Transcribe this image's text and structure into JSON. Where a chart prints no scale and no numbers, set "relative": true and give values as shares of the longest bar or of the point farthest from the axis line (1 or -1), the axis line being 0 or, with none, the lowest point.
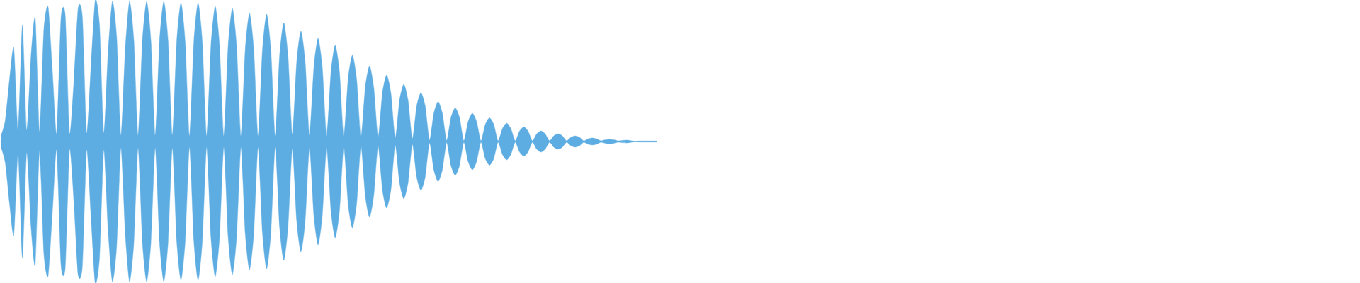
{
  "chart_data": {
    "type": "area",
    "relative": true,
    "categories": [
      null,
      null,
      null,
      null,
      null,
      null,
      null,
      null,
      null,
      null,
      null,
      null,
      null,
      null,
      null,
      null,
      null,
      null,
      null,
      null,
      null,
      null,
      null,
      null,
      null,
      null,
      null,
      null,
      null,
      null,
      null,
      null,
      null,
      null,
      null,
      null,
      null,
      null,
      null,
      null,
      null,
      null,
      null,
      null,
      null,
      null,
      null,
      null,
      null,
      null,
      null,
      null,
      null,
      null,
      null,
      null,
      null,
      null,
      null,
      null,
      null,
      null,
      null,
      null,
      null,
      null,
      null,
      null,
      null,
      null,
      null,
      null,
      null,
      null,
      null,
      null,
      null,
      null,
      null,
      null,
      null,
      null,
      null,
      null,
      null,
      null,
      null,
      null,
      null,
      null,
      null,
      null,
      null,
      null,
      null,
      null,
      null,
      null,
      null,
      null,
      null,
      null,
      null,
      null,
      null,
      null,
      null,
      null,
      null,
      null,
      null,
      null,
      null,
      null,
      null,
      null,
      null,
      null,
      null,
      null,
      null,
      null,
      null,
      null,
      null,
      null,
      null,
      null,
      null,
      null,
      null,
      null,
      null,
      null,
      null,
      null,
      null,
      null,
      null,
      null,
      null,
      null,
      null,
      null,
      null,
      null,
      null,
      null,
      null,
      null,
      null,
      null,
      null,
      null
    ],
    "series": [
      {
        "color": "#5dade2",
        "values": [
          0.04,
          0.15,
          0.44,
          0.66,
          0.08,
          0.82,
          0.08,
          0.6,
          0.87,
          0.07,
          0.79,
          0.95,
          0.5,
          0.06,
          0.87,
          0.89,
          0.06,
          0.42,
          0.94,
          0.88,
          0.06,
          0.53,
          1.0,
          0.82,
          0.06,
          0.63,
          0.99,
          0.74,
          0.045,
          0.65,
          0.99,
          0.72,
          0.045,
          0.71,
          0.99,
          0.71,
          0.045,
          0.71,
          0.99,
          0.71,
          0.045,
          0.7,
          0.98,
          0.7,
          0.04,
          0.7,
          0.98,
          0.7,
          0.04,
          0.68,
          0.955,
          0.68,
          0.04,
          0.67,
          0.94,
          0.67,
          0.04,
          0.65,
          0.905,
          0.65,
          0.04,
          0.64,
          0.9,
          0.64,
          0.04,
          0.6,
          0.84,
          0.6,
          0.05,
          0.56,
          0.78,
          0.56,
          0.045,
          0.52,
          0.73,
          0.52,
          0.04,
          0.49,
          0.68,
          0.49,
          0.035,
          0.44,
          0.61,
          0.44,
          0.03,
          0.38,
          0.535,
          0.38,
          0.03,
          0.34,
          0.47,
          0.34,
          0.025,
          0.29,
          0.405,
          0.29,
          0.02,
          0.25,
          0.345,
          0.25,
          0.01,
          0.2,
          0.283,
          0.2,
          0.008,
          0.17,
          0.238,
          0.17,
          0.006,
          0.14,
          0.2,
          0.14,
          0.005,
          0.12,
          0.167,
          0.12,
          0.005,
          0.09,
          0.13,
          0.09,
          0.005,
          0.074,
          0.103,
          0.074,
          0.005,
          0.054,
          0.075,
          0.054,
          0.005,
          0.04,
          0.055,
          0.04,
          0.005,
          0.03,
          0.04,
          0.03,
          0.005,
          0.019,
          0.025,
          0.019,
          0.005,
          0.012,
          0.015,
          0.012,
          0.005,
          0.008,
          0.01,
          0.006,
          0.002,
          0.004,
          0.004,
          0.004,
          0.004,
          0.004
        ]
      },
      {
        "color": "#5dade2",
        "values": [
          -0.04,
          -0.15,
          -0.44,
          -0.66,
          -0.08,
          -0.82,
          -0.08,
          -0.6,
          -0.87,
          -0.07,
          -0.79,
          -0.95,
          -0.5,
          -0.06,
          -0.87,
          -0.89,
          -0.06,
          -0.42,
          -0.94,
          -0.88,
          -0.06,
          -0.53,
          -1.0,
          -0.82,
          -0.06,
          -0.63,
          -0.99,
          -0.74,
          -0.045,
          -0.65,
          -0.99,
          -0.72,
          -0.045,
          -0.71,
          -0.99,
          -0.71,
          -0.045,
          -0.71,
          -0.99,
          -0.71,
          -0.045,
          -0.7,
          -0.98,
          -0.7,
          -0.04,
          -0.7,
          -0.98,
          -0.7,
          -0.04,
          -0.68,
          -0.955,
          -0.68,
          -0.04,
          -0.67,
          -0.94,
          -0.67,
          -0.04,
          -0.65,
          -0.905,
          -0.65,
          -0.04,
          -0.64,
          -0.9,
          -0.64,
          -0.04,
          -0.6,
          -0.84,
          -0.6,
          -0.05,
          -0.56,
          -0.78,
          -0.56,
          -0.045,
          -0.52,
          -0.73,
          -0.52,
          -0.04,
          -0.49,
          -0.68,
          -0.49,
          -0.035,
          -0.44,
          -0.61,
          -0.44,
          -0.03,
          -0.38,
          -0.535,
          -0.38,
          -0.03,
          -0.34,
          -0.47,
          -0.34,
          -0.025,
          -0.29,
          -0.405,
          -0.29,
          -0.02,
          -0.25,
          -0.345,
          -0.25,
          -0.01,
          -0.2,
          -0.283,
          -0.2,
          -0.008,
          -0.17,
          -0.238,
          -0.17,
          -0.006,
          -0.14,
          -0.2,
          -0.14,
          -0.005,
          -0.12,
          -0.167,
          -0.12,
          -0.005,
          -0.09,
          -0.13,
          -0.09,
          -0.005,
          -0.074,
          -0.103,
          -0.074,
          -0.005,
          -0.054,
          -0.075,
          -0.054,
          -0.005,
          -0.04,
          -0.055,
          -0.04,
          -0.005,
          -0.03,
          -0.04,
          -0.03,
          -0.005,
          -0.019,
          -0.025,
          -0.019,
          -0.005,
          -0.012,
          -0.015,
          -0.012,
          -0.005,
          -0.008,
          -0.01,
          -0.006,
          -0.002,
          -0.004,
          -0.004,
          -0.004,
          -0.004,
          -0.004
        ]
      }
    ]
  }
}
